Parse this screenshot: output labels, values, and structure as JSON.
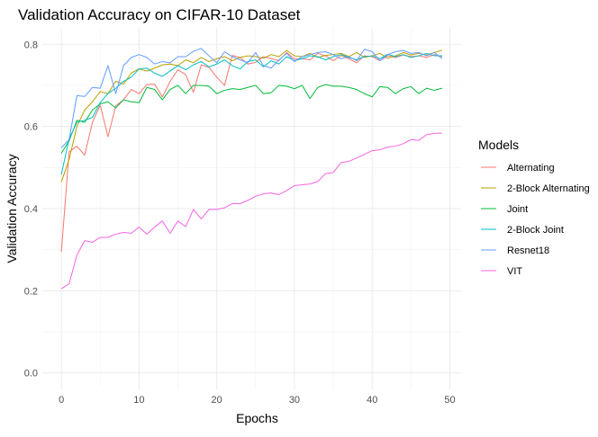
{
  "chart_data": {
    "type": "line",
    "title": "Validation Accuracy on CIFAR-10 Dataset",
    "xlabel": "Epochs",
    "ylabel": "Validation Accuracy",
    "xlim": [
      -2.45,
      51.45
    ],
    "ylim": [
      -0.04,
      0.84
    ],
    "xticks": [
      0,
      10,
      20,
      30,
      40,
      50
    ],
    "yticks": [
      0.0,
      0.2,
      0.4,
      0.6,
      0.8
    ],
    "xtick_labels": [
      "0",
      "10",
      "20",
      "30",
      "40",
      "50"
    ],
    "ytick_labels": [
      "0.0",
      "0.2",
      "0.4",
      "0.6",
      "0.8"
    ],
    "grid": true,
    "legend": {
      "title": "Models",
      "position": "right"
    },
    "x": [
      0,
      1,
      2,
      3,
      4,
      5,
      6,
      7,
      8,
      9,
      10,
      11,
      12,
      13,
      14,
      15,
      16,
      17,
      18,
      19,
      20,
      21,
      22,
      23,
      24,
      25,
      26,
      27,
      28,
      29,
      30,
      31,
      32,
      33,
      34,
      35,
      36,
      37,
      38,
      39,
      40,
      41,
      42,
      43,
      44,
      45,
      46,
      47,
      48,
      49
    ],
    "series": [
      {
        "name": "Alternating",
        "color": "#F8766D",
        "values": [
          0.295,
          0.538,
          0.552,
          0.53,
          0.61,
          0.652,
          0.575,
          0.65,
          0.665,
          0.69,
          0.68,
          0.702,
          0.703,
          0.672,
          0.71,
          0.738,
          0.726,
          0.683,
          0.75,
          0.744,
          0.72,
          0.7,
          0.773,
          0.768,
          0.752,
          0.756,
          0.77,
          0.765,
          0.76,
          0.78,
          0.764,
          0.765,
          0.762,
          0.778,
          0.772,
          0.76,
          0.773,
          0.765,
          0.755,
          0.772,
          0.77,
          0.76,
          0.772,
          0.768,
          0.774,
          0.77,
          0.772,
          0.768,
          0.775,
          0.77
        ]
      },
      {
        "name": "2-Block Alternating",
        "color": "#B79F00",
        "values": [
          0.465,
          0.52,
          0.6,
          0.64,
          0.66,
          0.685,
          0.68,
          0.71,
          0.703,
          0.73,
          0.74,
          0.735,
          0.742,
          0.75,
          0.752,
          0.748,
          0.762,
          0.755,
          0.768,
          0.758,
          0.765,
          0.77,
          0.76,
          0.768,
          0.772,
          0.77,
          0.766,
          0.775,
          0.77,
          0.785,
          0.772,
          0.77,
          0.778,
          0.768,
          0.773,
          0.775,
          0.778,
          0.77,
          0.78,
          0.768,
          0.772,
          0.778,
          0.766,
          0.772,
          0.78,
          0.774,
          0.778,
          0.774,
          0.78,
          0.786
        ]
      },
      {
        "name": "Joint",
        "color": "#00BA38",
        "values": [
          0.535,
          0.565,
          0.615,
          0.61,
          0.64,
          0.655,
          0.66,
          0.645,
          0.665,
          0.66,
          0.658,
          0.695,
          0.69,
          0.665,
          0.69,
          0.7,
          0.68,
          0.7,
          0.7,
          0.698,
          0.68,
          0.688,
          0.692,
          0.69,
          0.695,
          0.7,
          0.68,
          0.682,
          0.7,
          0.698,
          0.692,
          0.7,
          0.668,
          0.695,
          0.702,
          0.698,
          0.698,
          0.695,
          0.69,
          0.68,
          0.672,
          0.697,
          0.695,
          0.68,
          0.692,
          0.697,
          0.68,
          0.693,
          0.688,
          0.693
        ]
      },
      {
        "name": "2-Block Joint",
        "color": "#00BFC4",
        "values": [
          0.483,
          0.57,
          0.61,
          0.615,
          0.622,
          0.658,
          0.68,
          0.693,
          0.71,
          0.72,
          0.74,
          0.742,
          0.73,
          0.722,
          0.735,
          0.748,
          0.738,
          0.75,
          0.758,
          0.745,
          0.752,
          0.762,
          0.748,
          0.74,
          0.758,
          0.762,
          0.745,
          0.76,
          0.752,
          0.77,
          0.76,
          0.765,
          0.772,
          0.77,
          0.762,
          0.77,
          0.775,
          0.768,
          0.762,
          0.77,
          0.772,
          0.765,
          0.776,
          0.77,
          0.775,
          0.768,
          0.772,
          0.778,
          0.772,
          0.772
        ]
      },
      {
        "name": "Resnet18",
        "color": "#619CFF",
        "values": [
          0.548,
          0.568,
          0.675,
          0.673,
          0.695,
          0.693,
          0.748,
          0.68,
          0.748,
          0.768,
          0.775,
          0.768,
          0.752,
          0.758,
          0.755,
          0.77,
          0.77,
          0.783,
          0.79,
          0.772,
          0.755,
          0.782,
          0.77,
          0.762,
          0.755,
          0.78,
          0.748,
          0.742,
          0.762,
          0.778,
          0.758,
          0.77,
          0.775,
          0.78,
          0.782,
          0.775,
          0.765,
          0.77,
          0.76,
          0.788,
          0.782,
          0.76,
          0.775,
          0.782,
          0.785,
          0.778,
          0.78,
          0.772,
          0.78,
          0.765
        ]
      },
      {
        "name": "VIT",
        "color": "#F564E3",
        "values": [
          0.205,
          0.217,
          0.287,
          0.322,
          0.318,
          0.33,
          0.33,
          0.338,
          0.342,
          0.34,
          0.355,
          0.338,
          0.355,
          0.37,
          0.34,
          0.37,
          0.356,
          0.398,
          0.375,
          0.398,
          0.398,
          0.402,
          0.412,
          0.412,
          0.42,
          0.43,
          0.436,
          0.438,
          0.434,
          0.444,
          0.456,
          0.458,
          0.46,
          0.466,
          0.485,
          0.488,
          0.512,
          0.515,
          0.523,
          0.532,
          0.541,
          0.543,
          0.55,
          0.552,
          0.558,
          0.568,
          0.566,
          0.58,
          0.583,
          0.584
        ]
      }
    ]
  }
}
